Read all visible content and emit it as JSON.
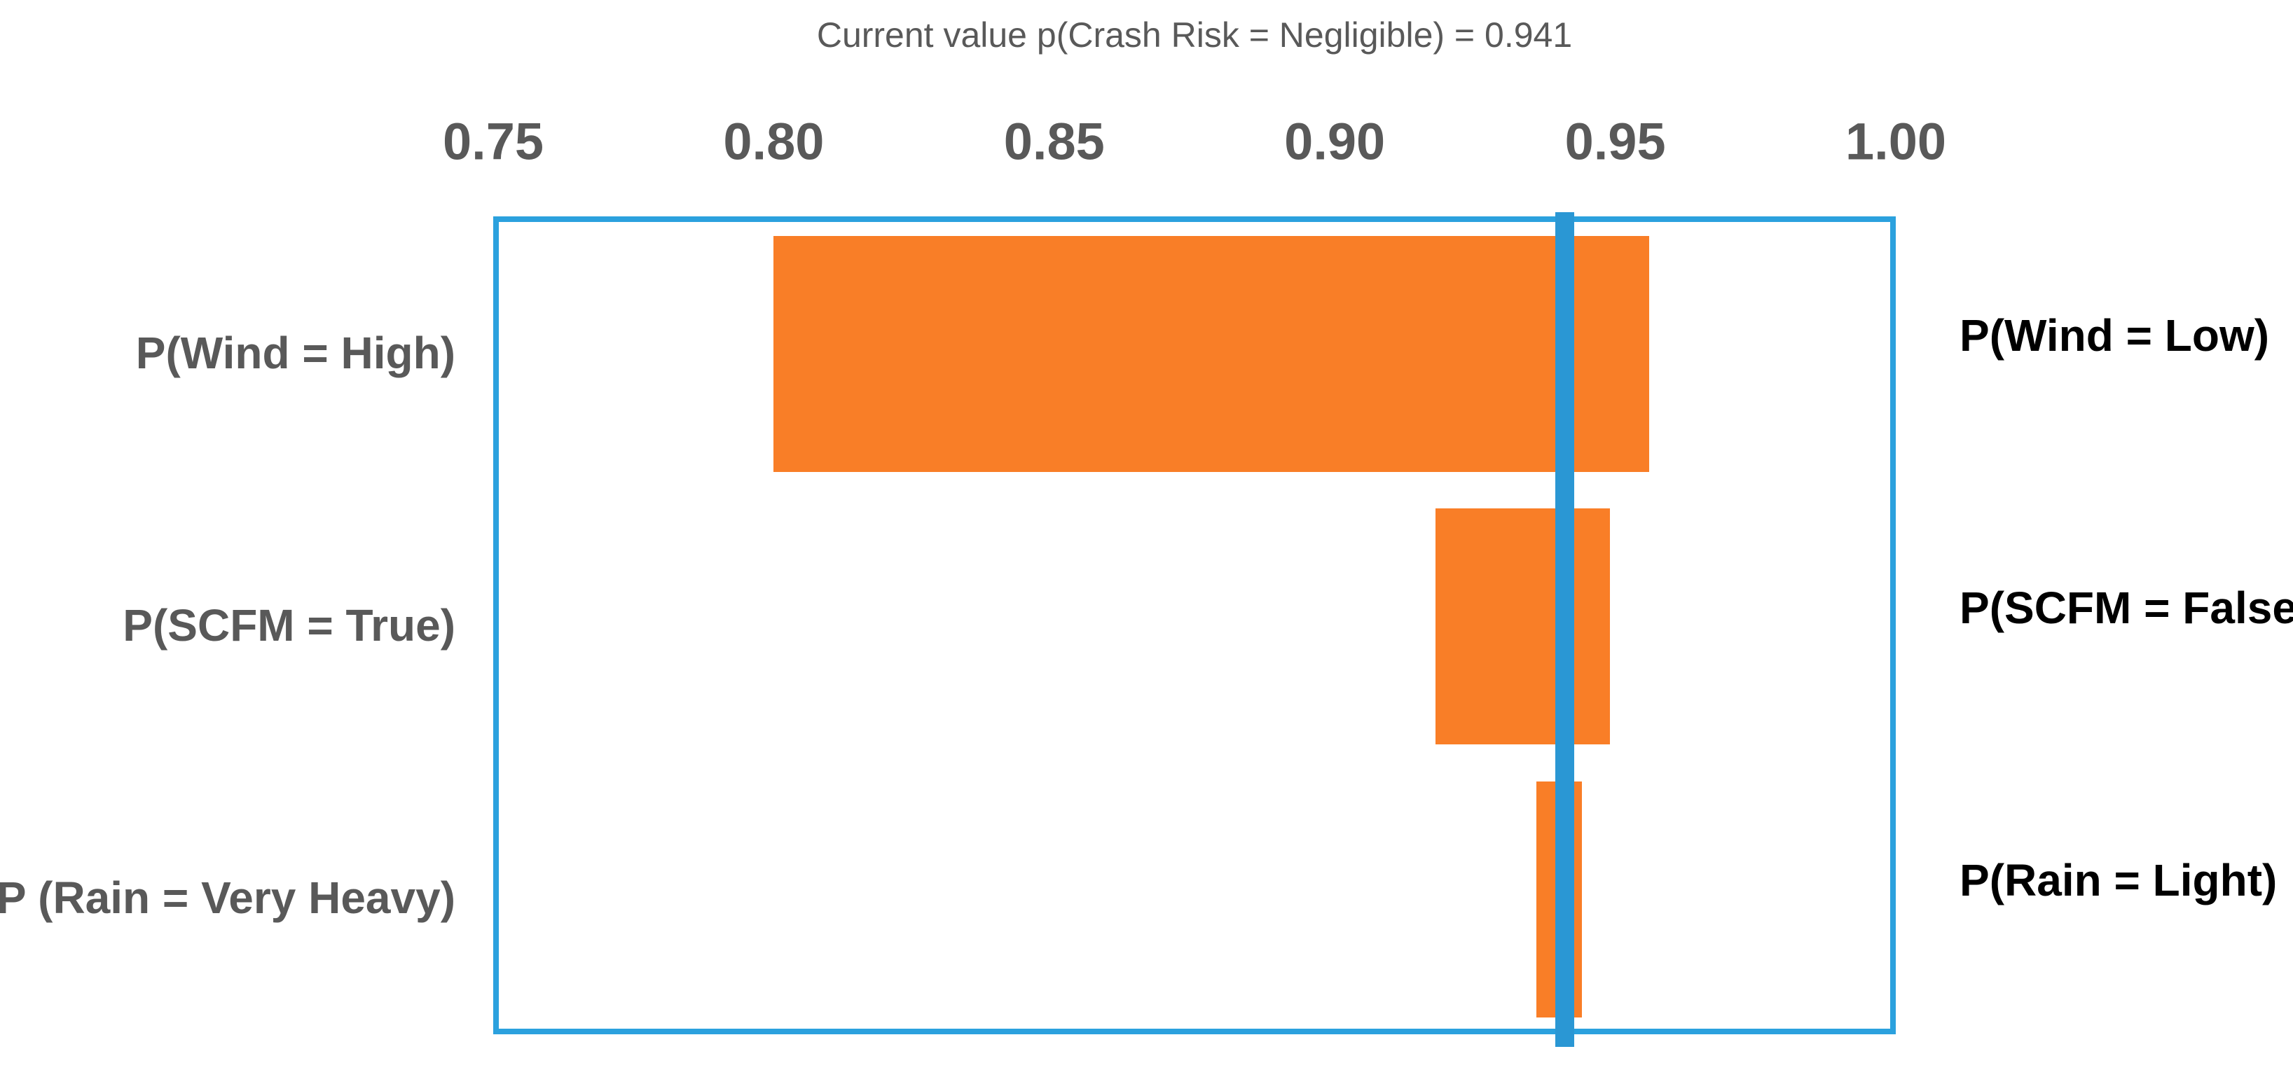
{
  "title": "Current value p(Crash Risk = Negligible) = 0.941",
  "current_value": 0.941,
  "colors": {
    "bar": "#F97E27",
    "current_line": "#2A97D4",
    "plot_border": "#2BA1DE",
    "title_text": "#595959",
    "axis_text": "#595959",
    "left_label_text": "#595959",
    "right_label_text": "#000000",
    "background": "#ffffff"
  },
  "chart_data": {
    "type": "bar",
    "subtype": "tornado-sensitivity",
    "orientation": "horizontal",
    "title": "Current value p(Crash Risk = Negligible) = 0.941",
    "xlabel": "",
    "ylabel": "",
    "x_axis": {
      "min": 0.75,
      "max": 1.0,
      "position": "top",
      "ticks": [
        "0.75",
        "0.80",
        "0.85",
        "0.90",
        "0.95",
        "1.00"
      ]
    },
    "grid": false,
    "legend": "none",
    "current_value": 0.941,
    "current_value_line_color": "#2A97D4",
    "bar_color": "#F97E27",
    "rows": [
      {
        "left_label": "P(Wind = High)",
        "right_label": "P(Wind = Low)",
        "low": 0.8,
        "high": 0.956
      },
      {
        "left_label": "P(SCFM = True)",
        "right_label": "P(SCFM = False)",
        "low": 0.918,
        "high": 0.949
      },
      {
        "left_label": "P (Rain = Very Heavy)",
        "right_label": "P(Rain = Light)",
        "low": 0.936,
        "high": 0.944
      }
    ]
  }
}
